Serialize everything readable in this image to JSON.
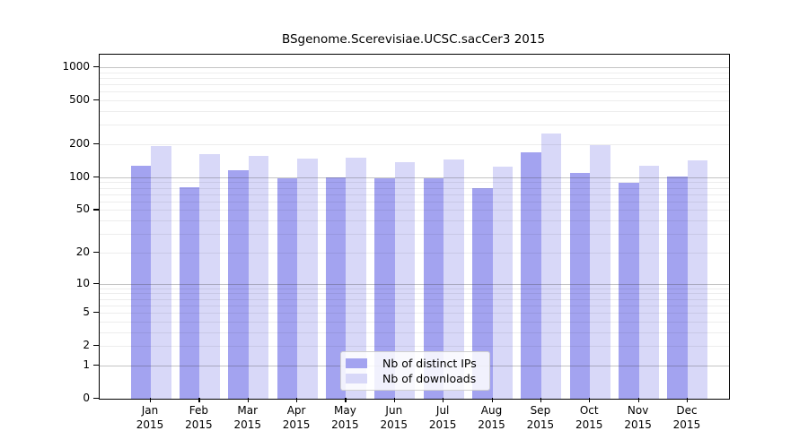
{
  "title": "BSgenome.Scerevisiae.UCSC.sacCer3 2015",
  "chart_data": {
    "type": "bar",
    "title": "BSgenome.Scerevisiae.UCSC.sacCer3 2015",
    "categories": [
      "Jan",
      "Feb",
      "Mar",
      "Apr",
      "May",
      "Jun",
      "Jul",
      "Aug",
      "Sep",
      "Oct",
      "Nov",
      "Dec"
    ],
    "category_year": "2015",
    "series": [
      {
        "name": "Nb of distinct IPs",
        "color": "#a3a3f0",
        "values": [
          127,
          81,
          117,
          98,
          100,
          97,
          98,
          79,
          168,
          109,
          89,
          102
        ]
      },
      {
        "name": "Nb of downloads",
        "color": "#d8d8f8",
        "values": [
          192,
          163,
          158,
          147,
          151,
          137,
          144,
          125,
          249,
          198,
          127,
          142
        ]
      }
    ],
    "yscale": "log10(1+x)",
    "y_ticks": [
      0,
      1,
      2,
      5,
      10,
      20,
      50,
      100,
      200,
      500,
      1000
    ],
    "ylim": [
      0,
      1300
    ],
    "grid": true,
    "legend_position": "bottom-center",
    "colors": {
      "axis": "#000000",
      "major_grid": "#c5c5c5",
      "minor_grid": "#ededed",
      "bar_distinct_ips": "#a3a3f0",
      "bar_downloads": "#d8d8f8",
      "background": "#ffffff"
    }
  }
}
